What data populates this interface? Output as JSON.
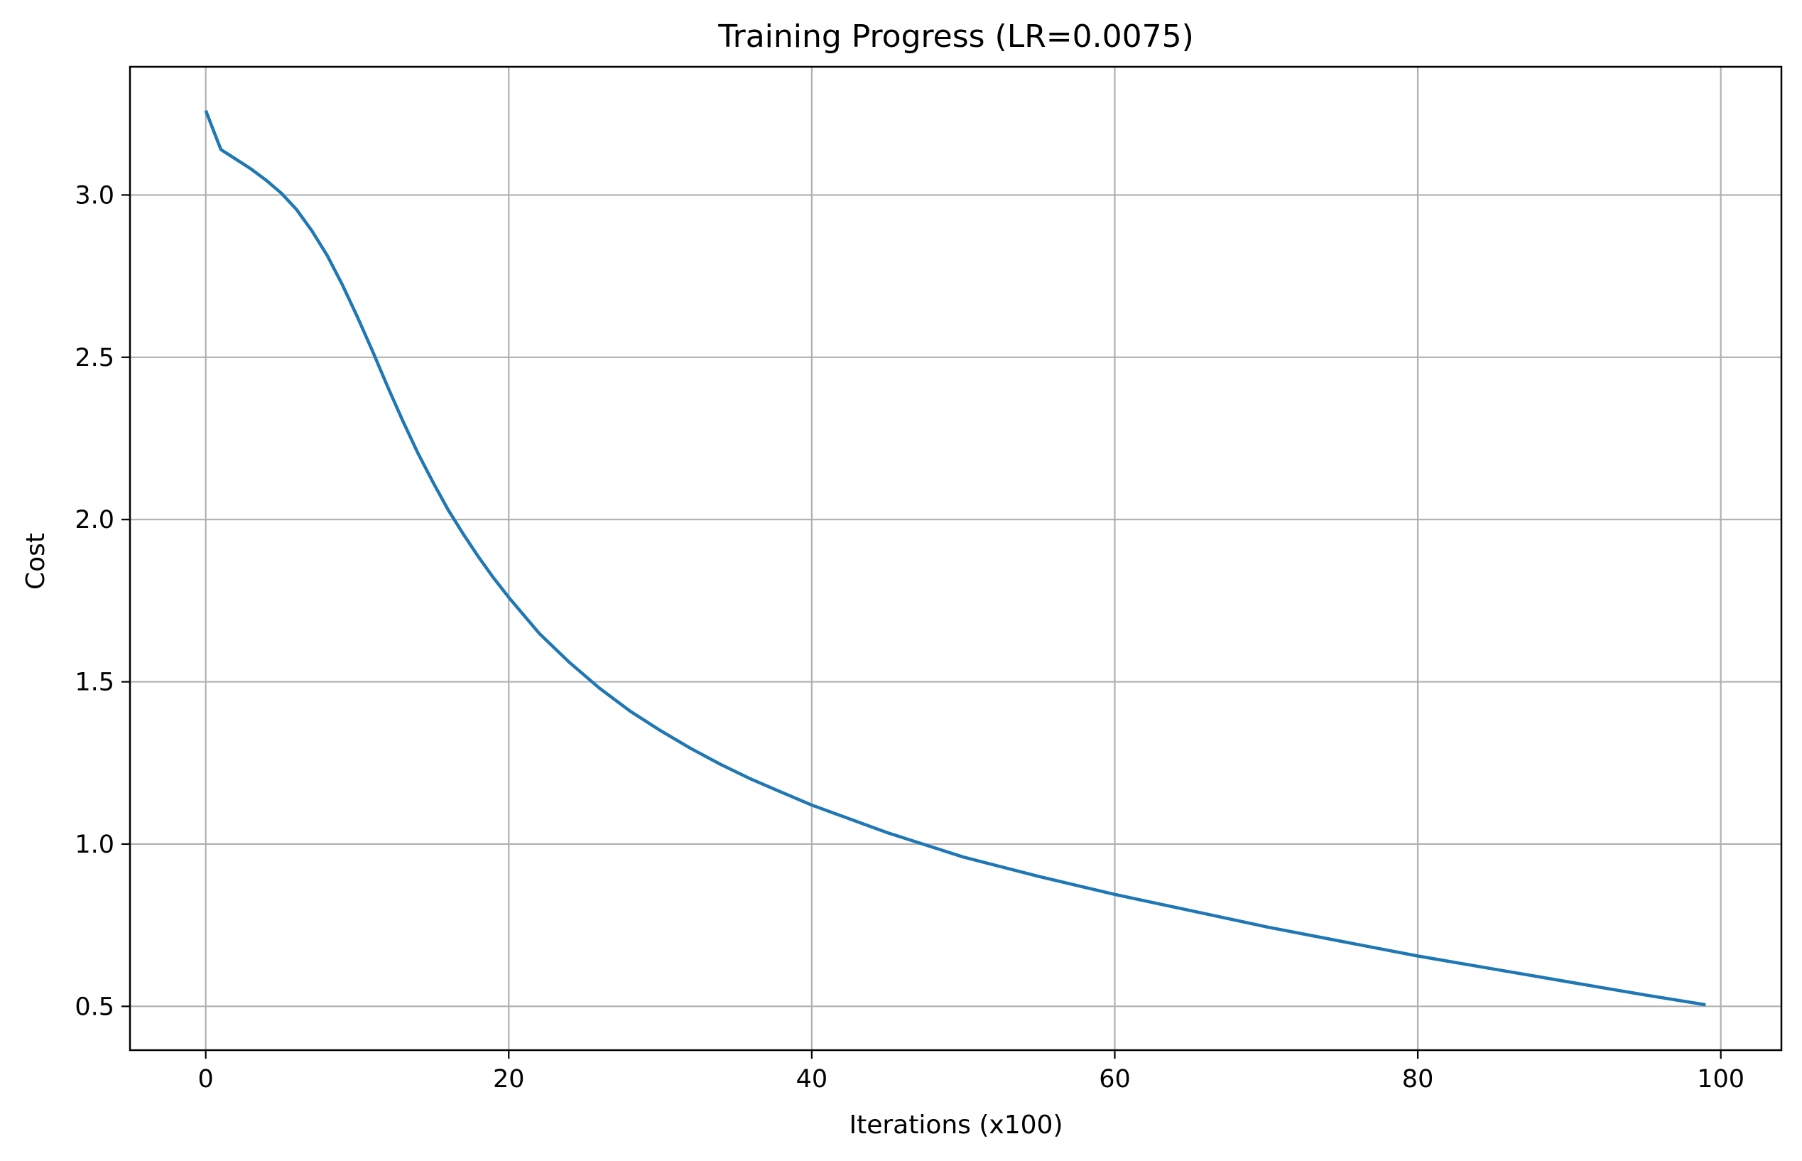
{
  "chart_data": {
    "type": "line",
    "title": "Training Progress (LR=0.0075)",
    "xlabel": "Iterations (x100)",
    "ylabel": "Cost",
    "xlim": [
      -5,
      104
    ],
    "ylim": [
      0.365,
      3.395
    ],
    "xticks": [
      0,
      20,
      40,
      60,
      80,
      100
    ],
    "yticks": [
      0.5,
      1.0,
      1.5,
      2.0,
      2.5,
      3.0
    ],
    "xtick_labels": [
      "0",
      "20",
      "40",
      "60",
      "80",
      "100"
    ],
    "ytick_labels": [
      "0.5",
      "1.0",
      "1.5",
      "2.0",
      "2.5",
      "3.0"
    ],
    "grid": true,
    "line_color": "#1f77b4",
    "grid_color": "#b0b0b0",
    "series": [
      {
        "x": [
          0,
          1,
          2,
          3,
          4,
          5,
          6,
          7,
          8,
          9,
          10,
          11,
          12,
          13,
          14,
          15,
          16,
          17,
          18,
          19,
          20,
          22,
          24,
          26,
          28,
          30,
          32,
          34,
          36,
          38,
          40,
          45,
          50,
          55,
          60,
          65,
          70,
          75,
          80,
          85,
          90,
          95,
          99
        ],
        "y": [
          3.26,
          3.14,
          3.11,
          3.08,
          3.045,
          3.005,
          2.955,
          2.89,
          2.815,
          2.725,
          2.625,
          2.52,
          2.41,
          2.305,
          2.205,
          2.115,
          2.03,
          1.955,
          1.885,
          1.82,
          1.76,
          1.65,
          1.56,
          1.48,
          1.41,
          1.35,
          1.295,
          1.245,
          1.2,
          1.16,
          1.12,
          1.035,
          0.96,
          0.9,
          0.845,
          0.795,
          0.745,
          0.7,
          0.655,
          0.615,
          0.575,
          0.535,
          0.505
        ]
      }
    ]
  }
}
